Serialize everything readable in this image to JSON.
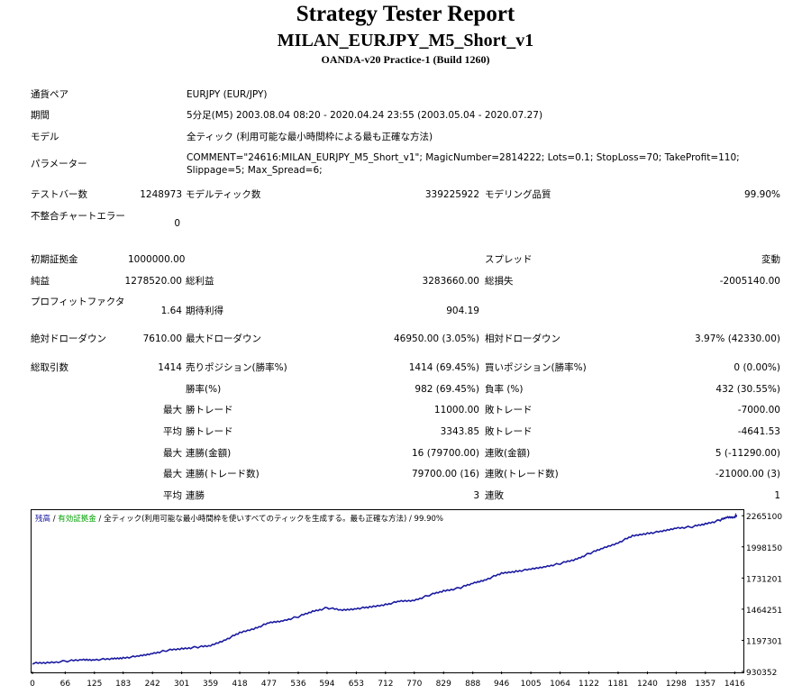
{
  "header": {
    "title": "Strategy Tester Report",
    "ea_name": "MILAN_EURJPY_M5_Short_v1",
    "server": "OANDA-v20 Practice-1 (Build 1260)"
  },
  "info": {
    "symbol_label": "通貨ペア",
    "symbol_value": "EURJPY (EUR/JPY)",
    "period_label": "期間",
    "period_value": "5分足(M5) 2003.08.04 08:20 - 2020.04.24 23:55 (2003.05.04 - 2020.07.27)",
    "model_label": "モデル",
    "model_value": "全ティック (利用可能な最小時間枠による最も正確な方法)",
    "params_label": "パラメーター",
    "params_value": "COMMENT=\"24616:MILAN_EURJPY_M5_Short_v1\"; MagicNumber=2814222; Lots=0.1; StopLoss=70; TakeProfit=110; Slippage=5; Max_Spread=6;"
  },
  "stats": {
    "bars_label": "テストバー数",
    "bars_value": "1248973",
    "ticks_label": "モデルティック数",
    "ticks_value": "339225922",
    "quality_label": "モデリング品質",
    "quality_value": "99.90%",
    "mismatch_label": "不整合チャートエラー",
    "mismatch_value": "0",
    "deposit_label": "初期証拠金",
    "deposit_value": "1000000.00",
    "spread_label": "スプレッド",
    "spread_value": "変動",
    "net_label": "純益",
    "net_value": "1278520.00",
    "gross_profit_label": "総利益",
    "gross_profit_value": "3283660.00",
    "gross_loss_label": "総損失",
    "gross_loss_value": "-2005140.00",
    "pf_label": "プロフィットファクタ",
    "pf_value": "1.64",
    "payoff_label": "期待利得",
    "payoff_value": "904.19",
    "abs_dd_label": "絶対ドローダウン",
    "abs_dd_value": "7610.00",
    "max_dd_label": "最大ドローダウン",
    "max_dd_value": "46950.00 (3.05%)",
    "rel_dd_label": "相対ドローダウン",
    "rel_dd_value": "3.97% (42330.00)",
    "trades_label": "総取引数",
    "trades_value": "1414",
    "short_label": "売りポジション(勝率%)",
    "short_value": "1414 (69.45%)",
    "long_label": "買いポジション(勝率%)",
    "long_value": "0 (0.00%)",
    "win_label": "勝率(%)",
    "win_value": "982 (69.45%)",
    "loss_label": "負率 (%)",
    "loss_value": "432 (30.55%)",
    "max_word": "最大",
    "avg_word": "平均",
    "max_win_label": "勝トレード",
    "max_win_value": "11000.00",
    "max_loss_label": "敗トレード",
    "max_loss_value": "-7000.00",
    "avg_win_label": "勝トレード",
    "avg_win_value": "3343.85",
    "avg_loss_label": "敗トレード",
    "avg_loss_value": "-4641.53",
    "cw_amt_label": "連勝(金額)",
    "cw_amt_value": "16 (79700.00)",
    "cl_amt_label": "連敗(金額)",
    "cl_amt_value": "5 (-11290.00)",
    "cw_cnt_label": "連勝(トレード数)",
    "cw_cnt_value": "79700.00 (16)",
    "cl_cnt_label": "連敗(トレード数)",
    "cl_cnt_value": "-21000.00 (3)",
    "avg_cw_label": "連勝",
    "avg_cw_value": "3",
    "avg_cl_label": "連敗",
    "avg_cl_value": "1"
  },
  "chart_data": {
    "type": "line",
    "legend": {
      "balance": "残高",
      "sep1": " / ",
      "equity": "有効証拠金",
      "sep2": " / ",
      "model": "全ティック(利用可能な最小時間枠を使いすべてのティックを生成する。最も正確な方法)",
      "quality": " / 99.90%"
    },
    "colors": {
      "balance": "#1a1aa0",
      "equity": "#00a000",
      "axis_text": "#000000"
    },
    "x_ticks": [
      0,
      66,
      125,
      183,
      242,
      301,
      359,
      418,
      477,
      536,
      594,
      653,
      712,
      770,
      829,
      888,
      946,
      1005,
      1064,
      1122,
      1181,
      1240,
      1298,
      1357,
      1416
    ],
    "y_ticks": [
      930352,
      1197301,
      1464251,
      1731201,
      1998150,
      2265100
    ],
    "xlim": [
      0,
      1430
    ],
    "ylim": [
      930352,
      2313000
    ],
    "series": [
      {
        "name": "残高",
        "x": [
          0,
          30,
          66,
          100,
          125,
          160,
          183,
          215,
          242,
          270,
          301,
          330,
          359,
          390,
          418,
          450,
          477,
          505,
          536,
          565,
          594,
          625,
          653,
          680,
          712,
          740,
          770,
          800,
          829,
          860,
          888,
          915,
          946,
          975,
          1005,
          1035,
          1064,
          1095,
          1122,
          1150,
          1181,
          1210,
          1240,
          1270,
          1298,
          1330,
          1357,
          1385,
          1400,
          1416,
          1420
        ],
        "values": [
          1000000,
          1005000,
          1018000,
          1030000,
          1032000,
          1037000,
          1048000,
          1060000,
          1085000,
          1110000,
          1125000,
          1138000,
          1150000,
          1205000,
          1260000,
          1303000,
          1345000,
          1365000,
          1400000,
          1445000,
          1475000,
          1455000,
          1470000,
          1480000,
          1505000,
          1530000,
          1540000,
          1585000,
          1620000,
          1645000,
          1685000,
          1720000,
          1770000,
          1790000,
          1805000,
          1830000,
          1855000,
          1890000,
          1940000,
          1985000,
          2035000,
          2090000,
          2115000,
          2130000,
          2160000,
          2170000,
          2195000,
          2225000,
          2250000,
          2255000,
          2270000
        ]
      }
    ]
  }
}
